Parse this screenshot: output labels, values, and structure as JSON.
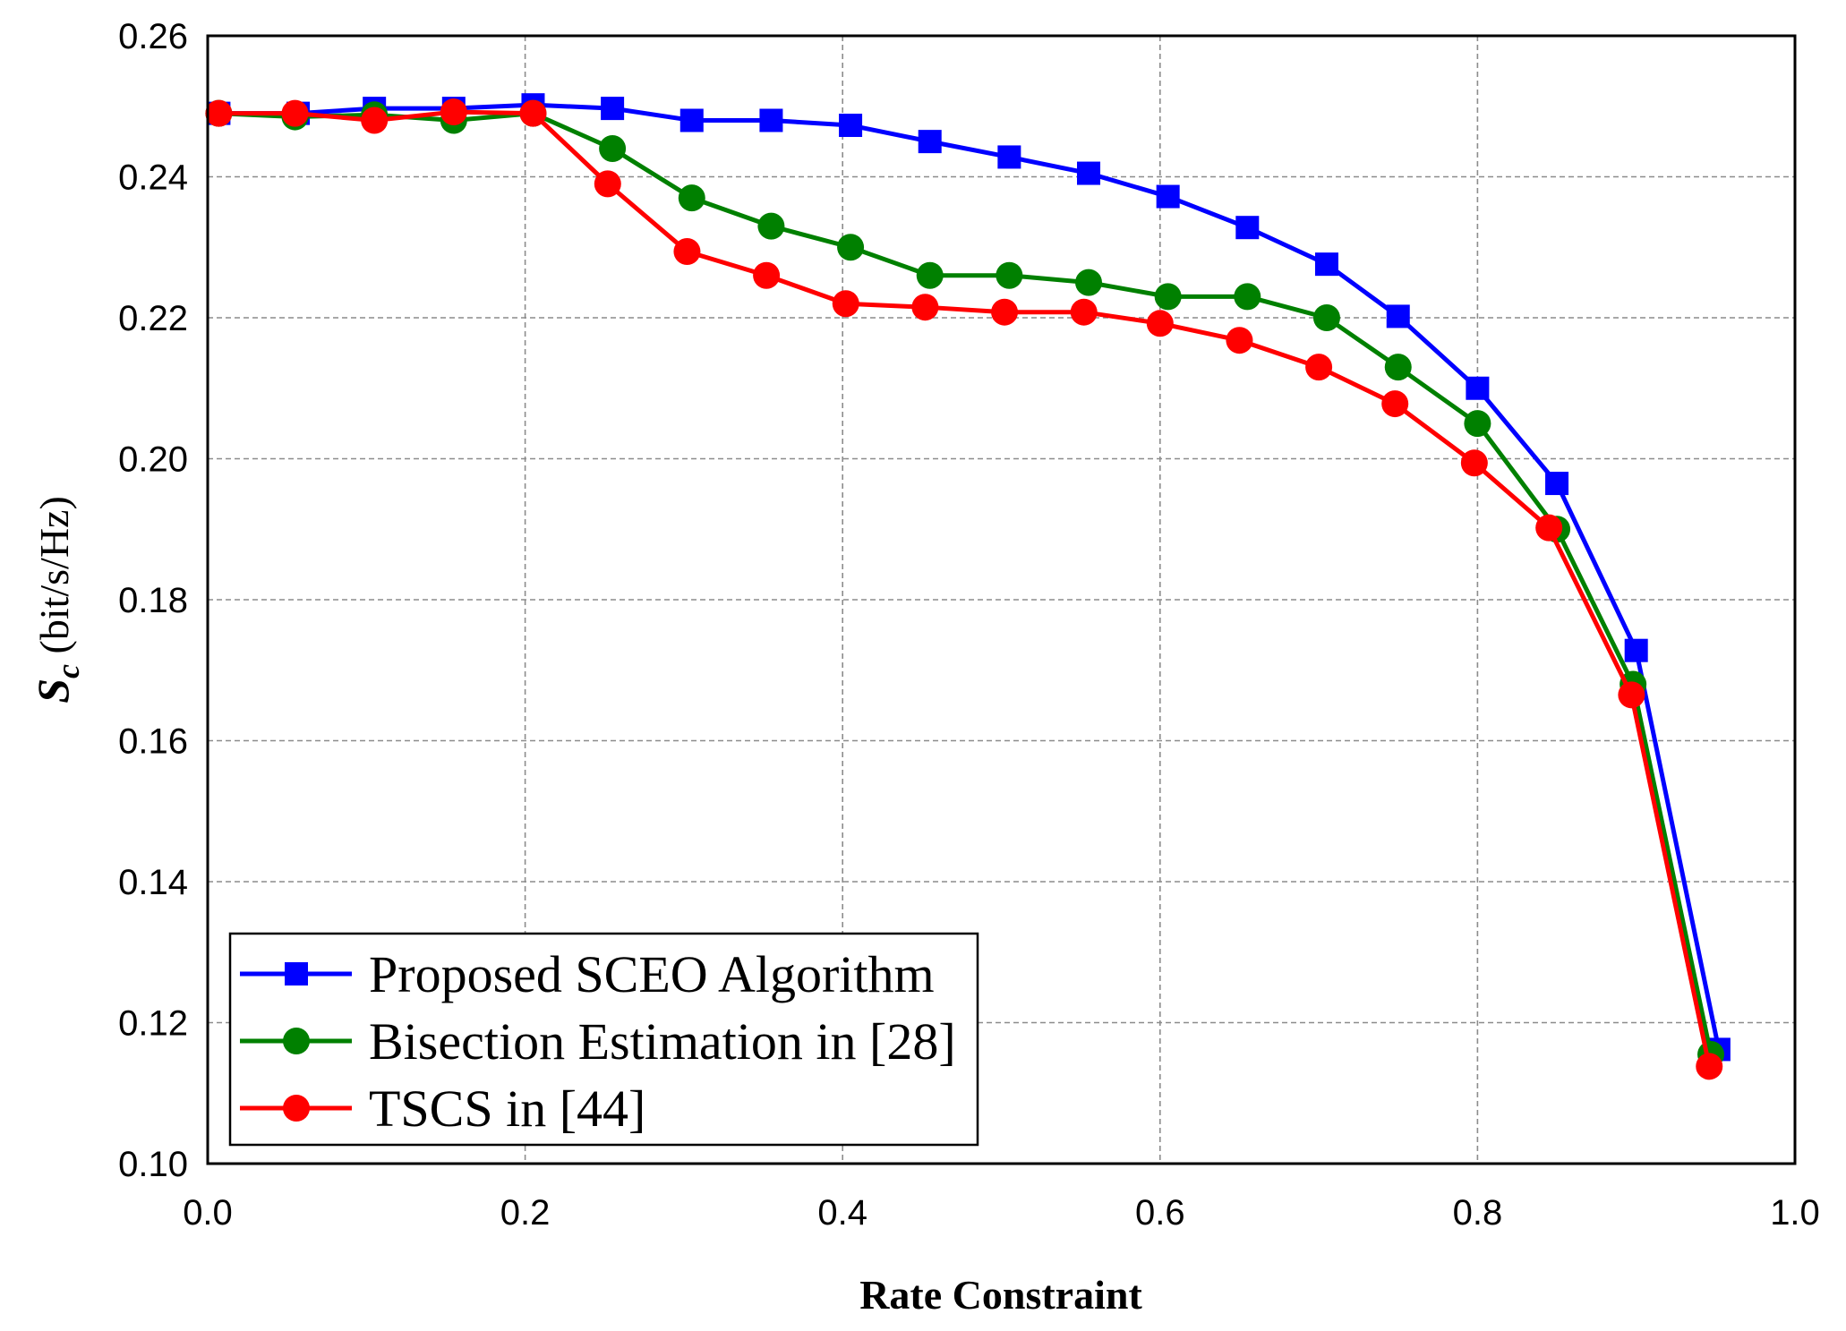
{
  "chart_data": {
    "type": "line",
    "title": "",
    "xlabel": "Rate Constraint",
    "ylabel_main": "S",
    "ylabel_sub": "c",
    "ylabel_unit": " (bit/s/Hz)",
    "xlim": [
      0.0,
      1.0
    ],
    "ylim": [
      0.1,
      0.26
    ],
    "xticks": [
      "0.0",
      "0.2",
      "0.4",
      "0.6",
      "0.8",
      "1.0"
    ],
    "yticks": [
      "0.10",
      "0.12",
      "0.14",
      "0.16",
      "0.18",
      "0.20",
      "0.22",
      "0.24",
      "0.26"
    ],
    "grid": true,
    "legend_position": "bottom-left",
    "series": [
      {
        "name": "Proposed SCEO Algorithm",
        "color": "#0000ff",
        "marker": "square",
        "x": [
          0.007,
          0.057,
          0.105,
          0.155,
          0.205,
          0.255,
          0.305,
          0.355,
          0.405,
          0.455,
          0.505,
          0.555,
          0.605,
          0.655,
          0.705,
          0.75,
          0.8,
          0.85,
          0.9,
          0.952
        ],
        "y": [
          0.249,
          0.249,
          0.2497,
          0.2497,
          0.2502,
          0.2497,
          0.248,
          0.248,
          0.2473,
          0.245,
          0.2428,
          0.2405,
          0.2372,
          0.2328,
          0.2276,
          0.2202,
          0.21,
          0.1965,
          0.1728,
          0.1162
        ]
      },
      {
        "name": "Bisection Estimation in [28]",
        "color": "#008000",
        "marker": "circle",
        "x": [
          0.007,
          0.055,
          0.105,
          0.155,
          0.205,
          0.255,
          0.305,
          0.355,
          0.405,
          0.455,
          0.505,
          0.555,
          0.605,
          0.655,
          0.705,
          0.75,
          0.8,
          0.85,
          0.898,
          0.947
        ],
        "y": [
          0.249,
          0.2485,
          0.2488,
          0.248,
          0.249,
          0.244,
          0.237,
          0.233,
          0.23,
          0.226,
          0.226,
          0.225,
          0.223,
          0.223,
          0.22,
          0.213,
          0.205,
          0.19,
          0.168,
          0.1155
        ]
      },
      {
        "name": "TSCS in [44]",
        "color": "#ff0000",
        "marker": "circle",
        "x": [
          0.007,
          0.055,
          0.105,
          0.155,
          0.205,
          0.252,
          0.302,
          0.352,
          0.402,
          0.452,
          0.502,
          0.552,
          0.6,
          0.65,
          0.7,
          0.748,
          0.798,
          0.845,
          0.897,
          0.946
        ],
        "y": [
          0.249,
          0.249,
          0.248,
          0.2492,
          0.249,
          0.239,
          0.2294,
          0.226,
          0.222,
          0.2215,
          0.2208,
          0.2208,
          0.2192,
          0.2168,
          0.213,
          0.2078,
          0.1994,
          0.1902,
          0.1665,
          0.1138
        ]
      }
    ]
  }
}
